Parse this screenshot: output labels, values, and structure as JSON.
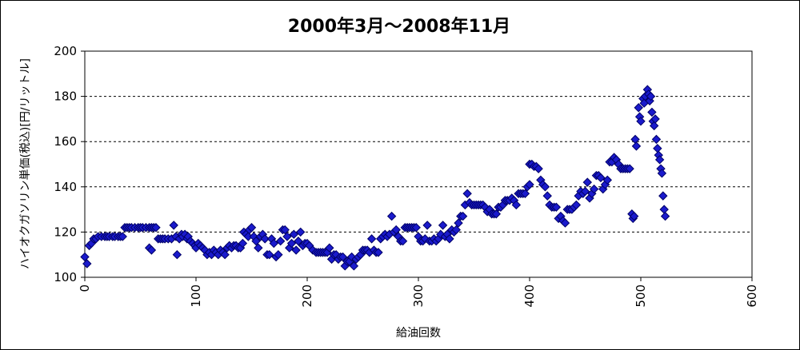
{
  "chart_data": {
    "type": "scatter",
    "title": "2000年3月～2008年11月",
    "xlabel": "給油回数",
    "ylabel": "ハイオクガソリン単価(税込)[円/リットル]",
    "xlim": [
      0,
      600
    ],
    "ylim": [
      100,
      200
    ],
    "xticks": [
      0,
      100,
      200,
      300,
      400,
      500,
      600
    ],
    "yticks": [
      100,
      120,
      140,
      160,
      180,
      200
    ],
    "grid": "horizontal-dashed",
    "legend": "none",
    "marker_color": "#1a1acc",
    "marker_edge": "#000066",
    "points": [
      [
        0,
        109
      ],
      [
        2,
        106
      ],
      [
        4,
        114
      ],
      [
        6,
        115
      ],
      [
        8,
        117
      ],
      [
        10,
        117
      ],
      [
        12,
        118
      ],
      [
        15,
        118
      ],
      [
        18,
        118
      ],
      [
        20,
        118
      ],
      [
        22,
        118
      ],
      [
        25,
        118
      ],
      [
        27,
        118
      ],
      [
        30,
        118
      ],
      [
        32,
        118
      ],
      [
        34,
        118
      ],
      [
        36,
        122
      ],
      [
        38,
        122
      ],
      [
        40,
        122
      ],
      [
        42,
        122
      ],
      [
        45,
        122
      ],
      [
        48,
        122
      ],
      [
        50,
        122
      ],
      [
        52,
        122
      ],
      [
        55,
        122
      ],
      [
        58,
        122
      ],
      [
        60,
        122
      ],
      [
        62,
        122
      ],
      [
        64,
        122
      ],
      [
        58,
        113
      ],
      [
        60,
        112
      ],
      [
        66,
        117
      ],
      [
        68,
        117
      ],
      [
        70,
        117
      ],
      [
        72,
        117
      ],
      [
        75,
        117
      ],
      [
        78,
        117
      ],
      [
        80,
        123
      ],
      [
        82,
        118
      ],
      [
        83,
        110
      ],
      [
        85,
        117
      ],
      [
        87,
        119
      ],
      [
        88,
        118
      ],
      [
        90,
        119
      ],
      [
        92,
        117
      ],
      [
        93,
        118
      ],
      [
        95,
        116
      ],
      [
        97,
        115
      ],
      [
        99,
        114
      ],
      [
        100,
        113
      ],
      [
        102,
        115
      ],
      [
        104,
        114
      ],
      [
        106,
        113
      ],
      [
        108,
        112
      ],
      [
        110,
        110
      ],
      [
        112,
        111
      ],
      [
        114,
        110
      ],
      [
        116,
        112
      ],
      [
        118,
        111
      ],
      [
        120,
        110
      ],
      [
        122,
        112
      ],
      [
        124,
        111
      ],
      [
        126,
        110
      ],
      [
        128,
        113
      ],
      [
        130,
        114
      ],
      [
        132,
        113
      ],
      [
        134,
        114
      ],
      [
        136,
        114
      ],
      [
        138,
        113
      ],
      [
        140,
        113
      ],
      [
        142,
        115
      ],
      [
        143,
        120
      ],
      [
        145,
        119
      ],
      [
        147,
        118
      ],
      [
        148,
        121
      ],
      [
        150,
        122
      ],
      [
        152,
        118
      ],
      [
        154,
        116
      ],
      [
        156,
        113
      ],
      [
        158,
        118
      ],
      [
        160,
        119
      ],
      [
        162,
        117
      ],
      [
        164,
        110
      ],
      [
        166,
        110
      ],
      [
        168,
        117
      ],
      [
        170,
        115
      ],
      [
        172,
        109
      ],
      [
        174,
        110
      ],
      [
        176,
        116
      ],
      [
        178,
        121
      ],
      [
        180,
        121
      ],
      [
        182,
        118
      ],
      [
        184,
        113
      ],
      [
        186,
        115
      ],
      [
        188,
        119
      ],
      [
        190,
        112
      ],
      [
        192,
        116
      ],
      [
        194,
        120
      ],
      [
        196,
        114
      ],
      [
        198,
        115
      ],
      [
        200,
        115
      ],
      [
        202,
        114
      ],
      [
        205,
        112
      ],
      [
        208,
        111
      ],
      [
        210,
        111
      ],
      [
        212,
        111
      ],
      [
        214,
        111
      ],
      [
        216,
        111
      ],
      [
        218,
        111
      ],
      [
        220,
        113
      ],
      [
        222,
        108
      ],
      [
        224,
        110
      ],
      [
        226,
        110
      ],
      [
        228,
        108
      ],
      [
        230,
        109
      ],
      [
        232,
        109
      ],
      [
        234,
        105
      ],
      [
        236,
        107
      ],
      [
        238,
        107
      ],
      [
        240,
        109
      ],
      [
        242,
        105
      ],
      [
        244,
        108
      ],
      [
        246,
        109
      ],
      [
        248,
        110
      ],
      [
        250,
        112
      ],
      [
        252,
        112
      ],
      [
        254,
        112
      ],
      [
        256,
        111
      ],
      [
        258,
        117
      ],
      [
        260,
        112
      ],
      [
        262,
        111
      ],
      [
        264,
        111
      ],
      [
        266,
        117
      ],
      [
        268,
        118
      ],
      [
        270,
        119
      ],
      [
        272,
        118
      ],
      [
        274,
        119
      ],
      [
        276,
        127
      ],
      [
        278,
        120
      ],
      [
        280,
        121
      ],
      [
        282,
        118
      ],
      [
        284,
        116
      ],
      [
        286,
        116
      ],
      [
        288,
        122
      ],
      [
        290,
        122
      ],
      [
        292,
        122
      ],
      [
        294,
        122
      ],
      [
        296,
        122
      ],
      [
        298,
        122
      ],
      [
        300,
        118
      ],
      [
        302,
        116
      ],
      [
        304,
        116
      ],
      [
        306,
        117
      ],
      [
        308,
        123
      ],
      [
        310,
        116
      ],
      [
        312,
        116
      ],
      [
        314,
        117
      ],
      [
        316,
        116
      ],
      [
        318,
        117
      ],
      [
        320,
        119
      ],
      [
        322,
        123
      ],
      [
        324,
        118
      ],
      [
        326,
        119
      ],
      [
        328,
        117
      ],
      [
        330,
        121
      ],
      [
        332,
        120
      ],
      [
        334,
        121
      ],
      [
        336,
        124
      ],
      [
        338,
        127
      ],
      [
        340,
        127
      ],
      [
        342,
        132
      ],
      [
        344,
        137
      ],
      [
        346,
        133
      ],
      [
        348,
        132
      ],
      [
        350,
        132
      ],
      [
        352,
        132
      ],
      [
        354,
        132
      ],
      [
        356,
        132
      ],
      [
        358,
        132
      ],
      [
        360,
        131
      ],
      [
        362,
        129
      ],
      [
        364,
        130
      ],
      [
        366,
        128
      ],
      [
        368,
        128
      ],
      [
        370,
        128
      ],
      [
        372,
        131
      ],
      [
        374,
        131
      ],
      [
        376,
        132
      ],
      [
        378,
        134
      ],
      [
        380,
        134
      ],
      [
        382,
        134
      ],
      [
        384,
        135
      ],
      [
        386,
        134
      ],
      [
        388,
        132
      ],
      [
        390,
        137
      ],
      [
        392,
        137
      ],
      [
        394,
        137
      ],
      [
        396,
        137
      ],
      [
        398,
        140
      ],
      [
        400,
        141
      ],
      [
        400,
        150
      ],
      [
        402,
        150
      ],
      [
        404,
        149
      ],
      [
        406,
        149
      ],
      [
        408,
        148
      ],
      [
        410,
        143
      ],
      [
        412,
        141
      ],
      [
        414,
        140
      ],
      [
        416,
        136
      ],
      [
        418,
        132
      ],
      [
        420,
        131
      ],
      [
        422,
        131
      ],
      [
        424,
        131
      ],
      [
        426,
        126
      ],
      [
        428,
        127
      ],
      [
        430,
        125
      ],
      [
        432,
        124
      ],
      [
        434,
        130
      ],
      [
        436,
        130
      ],
      [
        438,
        130
      ],
      [
        440,
        131
      ],
      [
        442,
        132
      ],
      [
        444,
        136
      ],
      [
        446,
        138
      ],
      [
        448,
        137
      ],
      [
        450,
        138
      ],
      [
        452,
        142
      ],
      [
        454,
        135
      ],
      [
        456,
        137
      ],
      [
        458,
        139
      ],
      [
        460,
        145
      ],
      [
        462,
        145
      ],
      [
        464,
        144
      ],
      [
        466,
        139
      ],
      [
        468,
        141
      ],
      [
        470,
        143
      ],
      [
        472,
        151
      ],
      [
        474,
        151
      ],
      [
        476,
        153
      ],
      [
        478,
        152
      ],
      [
        480,
        150
      ],
      [
        482,
        148
      ],
      [
        484,
        148
      ],
      [
        486,
        148
      ],
      [
        488,
        148
      ],
      [
        490,
        148
      ],
      [
        492,
        128
      ],
      [
        493,
        126
      ],
      [
        494,
        127
      ],
      [
        495,
        161
      ],
      [
        496,
        158
      ],
      [
        498,
        175
      ],
      [
        499,
        171
      ],
      [
        500,
        169
      ],
      [
        502,
        179
      ],
      [
        503,
        177
      ],
      [
        504,
        180
      ],
      [
        506,
        183
      ],
      [
        507,
        181
      ],
      [
        508,
        178
      ],
      [
        509,
        180
      ],
      [
        510,
        173
      ],
      [
        511,
        169
      ],
      [
        512,
        167
      ],
      [
        513,
        170
      ],
      [
        514,
        161
      ],
      [
        515,
        157
      ],
      [
        516,
        154
      ],
      [
        517,
        152
      ],
      [
        518,
        148
      ],
      [
        519,
        146
      ],
      [
        520,
        136
      ],
      [
        521,
        130
      ],
      [
        522,
        127
      ]
    ]
  }
}
